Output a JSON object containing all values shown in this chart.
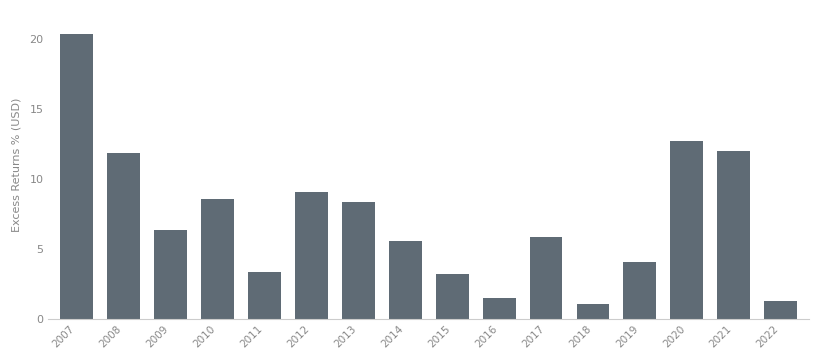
{
  "years": [
    "2007",
    "2008",
    "2009",
    "2010",
    "2011",
    "2012",
    "2013",
    "2014",
    "2015",
    "2016",
    "2017",
    "2018",
    "2019",
    "2020",
    "2021",
    "2022"
  ],
  "values": [
    20.4,
    11.9,
    6.4,
    8.6,
    3.4,
    9.1,
    8.4,
    5.6,
    3.2,
    1.5,
    5.9,
    1.1,
    4.1,
    12.7,
    12.0,
    1.3
  ],
  "bar_color": "#5f6b75",
  "ylabel": "Excess Returns % (USD)",
  "ylim": [
    0,
    22
  ],
  "yticks": [
    0,
    5,
    10,
    15,
    20
  ],
  "background_color": "#ffffff",
  "bar_width": 0.7,
  "tick_color": "#888888",
  "spine_color": "#cccccc"
}
